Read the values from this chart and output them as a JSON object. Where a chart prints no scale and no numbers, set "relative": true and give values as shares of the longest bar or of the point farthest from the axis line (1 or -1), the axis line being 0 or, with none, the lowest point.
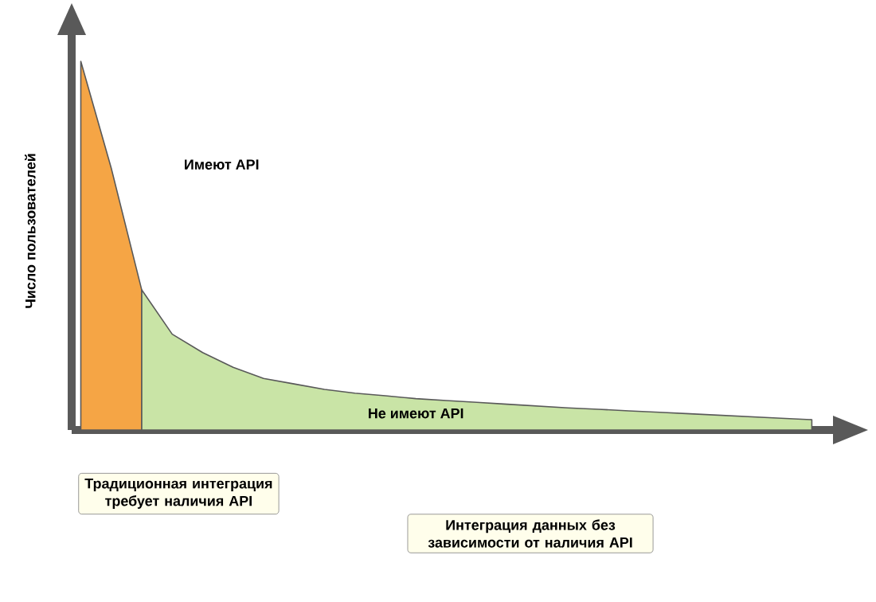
{
  "chart_data": {
    "type": "area",
    "relative": true,
    "ylabel": "Число пользователей",
    "categories": [
      null,
      null,
      null,
      null,
      null,
      null,
      null,
      null,
      null,
      null,
      null,
      null,
      null,
      null,
      null,
      null,
      null,
      null,
      null,
      null,
      null,
      null,
      null,
      null,
      null
    ],
    "series": [
      {
        "color": "#f5a545",
        "values": [
          1.0,
          0.71,
          0.38,
          null,
          null,
          null,
          null,
          null,
          null,
          null,
          null,
          null,
          null,
          null,
          null,
          null,
          null,
          null,
          null,
          null,
          null,
          null,
          null,
          null,
          null
        ]
      },
      {
        "color": "#c9e4a6",
        "values": [
          null,
          null,
          0.38,
          0.26,
          0.21,
          0.17,
          0.14,
          0.125,
          0.11,
          0.1,
          0.093,
          0.085,
          0.08,
          0.075,
          0.07,
          0.065,
          0.06,
          0.056,
          0.052,
          0.048,
          0.044,
          0.04,
          0.036,
          0.032,
          0.028
        ]
      }
    ],
    "annotations": [
      "Имеют API",
      "Не имеют API",
      "Традиционная интеграция требует наличия API",
      "Интеграция данных без зависимости от наличия API"
    ]
  }
}
